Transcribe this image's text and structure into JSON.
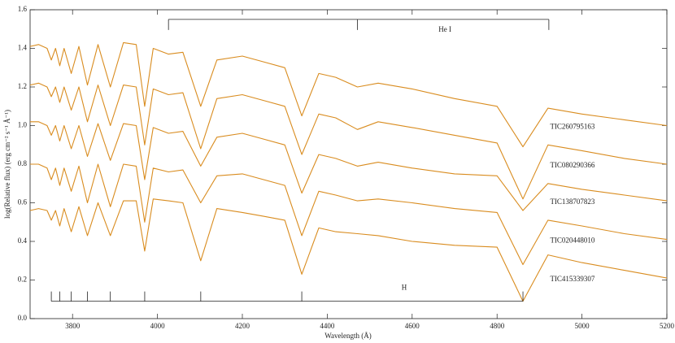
{
  "chart_data": {
    "type": "line",
    "x_label": "Wavelength (Å)",
    "y_label": "log(Relative flux) (erg cm⁻² s⁻¹ Å⁻¹)",
    "x": [
      3700,
      3720,
      3740,
      3750,
      3760,
      3770,
      3780,
      3797,
      3815,
      3835,
      3860,
      3889,
      3920,
      3950,
      3970,
      3990,
      4026,
      4060,
      4102,
      4140,
      4200,
      4250,
      4300,
      4340,
      4380,
      4420,
      4471,
      4520,
      4600,
      4700,
      4800,
      4861,
      4920,
      5000,
      5100,
      5200
    ],
    "series": [
      {
        "name": "TIC260795163",
        "color": "#d98c1f",
        "values": [
          1.41,
          1.42,
          1.4,
          1.34,
          1.4,
          1.31,
          1.4,
          1.27,
          1.41,
          1.21,
          1.42,
          1.2,
          1.43,
          1.42,
          1.1,
          1.4,
          1.37,
          1.38,
          1.1,
          1.34,
          1.36,
          1.33,
          1.3,
          1.05,
          1.27,
          1.25,
          1.2,
          1.22,
          1.19,
          1.14,
          1.1,
          0.89,
          1.09,
          1.06,
          1.03,
          1.0
        ]
      },
      {
        "name": "TIC080290366",
        "color": "#d98c1f",
        "values": [
          1.21,
          1.22,
          1.2,
          1.15,
          1.2,
          1.12,
          1.2,
          1.08,
          1.2,
          1.02,
          1.21,
          1.0,
          1.21,
          1.2,
          0.9,
          1.19,
          1.16,
          1.17,
          0.88,
          1.14,
          1.16,
          1.13,
          1.1,
          0.85,
          1.06,
          1.04,
          0.98,
          1.02,
          0.99,
          0.95,
          0.91,
          0.62,
          0.9,
          0.87,
          0.83,
          0.8
        ]
      },
      {
        "name": "TIC138707823",
        "color": "#d98c1f",
        "values": [
          1.02,
          1.02,
          1.0,
          0.95,
          1.0,
          0.92,
          1.0,
          0.88,
          1.0,
          0.84,
          1.01,
          0.82,
          1.01,
          1.0,
          0.72,
          0.99,
          0.96,
          0.97,
          0.79,
          0.94,
          0.96,
          0.93,
          0.9,
          0.65,
          0.85,
          0.83,
          0.79,
          0.81,
          0.78,
          0.75,
          0.74,
          0.56,
          0.7,
          0.67,
          0.64,
          0.61
        ]
      },
      {
        "name": "TIC020448010",
        "color": "#d98c1f",
        "values": [
          0.8,
          0.8,
          0.78,
          0.72,
          0.78,
          0.69,
          0.78,
          0.66,
          0.79,
          0.6,
          0.8,
          0.58,
          0.8,
          0.79,
          0.5,
          0.78,
          0.76,
          0.77,
          0.6,
          0.74,
          0.75,
          0.72,
          0.69,
          0.43,
          0.66,
          0.64,
          0.61,
          0.62,
          0.6,
          0.57,
          0.55,
          0.28,
          0.51,
          0.48,
          0.44,
          0.41
        ]
      },
      {
        "name": "TIC415339307",
        "color": "#d98c1f",
        "values": [
          0.56,
          0.57,
          0.56,
          0.51,
          0.56,
          0.48,
          0.57,
          0.45,
          0.58,
          0.43,
          0.6,
          0.43,
          0.61,
          0.61,
          0.35,
          0.62,
          0.61,
          0.6,
          0.3,
          0.57,
          0.55,
          0.53,
          0.51,
          0.23,
          0.47,
          0.45,
          0.44,
          0.43,
          0.4,
          0.38,
          0.37,
          0.09,
          0.33,
          0.29,
          0.25,
          0.21
        ]
      }
    ],
    "xlim": [
      3700,
      5200
    ],
    "xticks": [
      3800,
      4000,
      4200,
      4400,
      4600,
      4800,
      5000,
      5200
    ],
    "ylim": [
      0,
      1.6
    ],
    "yticks": [
      {
        "value": 0,
        "label": "0.0"
      },
      0.2,
      0.4,
      0.6,
      0.8,
      {
        "value": 1,
        "label": "1.0"
      },
      1.2,
      1.4,
      1.6
    ],
    "line_markers": [
      {
        "label": "He I",
        "lines": [
          4026,
          4471,
          4922
        ],
        "level": 1.55
      },
      {
        "label": "H",
        "lines": [
          3750,
          3770,
          3797,
          3835,
          3889,
          3970,
          4102,
          4340,
          4861
        ],
        "level": 0.09
      }
    ]
  }
}
